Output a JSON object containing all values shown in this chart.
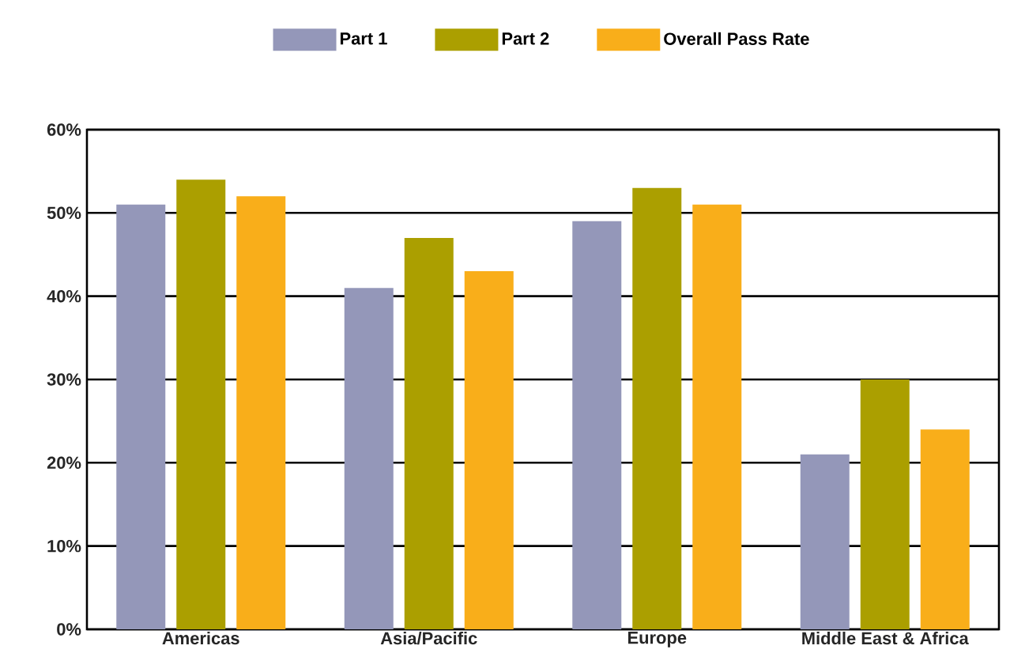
{
  "chart_data": {
    "type": "bar",
    "categories": [
      "Americas",
      "Asia/Pacific",
      "Europe",
      "Middle East & Africa"
    ],
    "series": [
      {
        "name": "Part 1",
        "color": "#9497b9",
        "values": [
          51,
          41,
          49,
          21
        ]
      },
      {
        "name": "Part 2",
        "color": "#ab9f00",
        "values": [
          54,
          47,
          53,
          30
        ]
      },
      {
        "name": "Overall Pass Rate",
        "color": "#f9ae1a",
        "values": [
          52,
          43,
          51,
          24
        ]
      }
    ],
    "ylim": [
      0,
      60
    ],
    "yticks": [
      {
        "value": 0,
        "label": "0%"
      },
      {
        "value": 10,
        "label": "10%"
      },
      {
        "value": 20,
        "label": "20%"
      },
      {
        "value": 30,
        "label": "30%"
      },
      {
        "value": 40,
        "label": "40%"
      },
      {
        "value": 50,
        "label": "50%"
      },
      {
        "value": 60,
        "label": "60%"
      }
    ],
    "grid": "y",
    "legend": "top"
  }
}
